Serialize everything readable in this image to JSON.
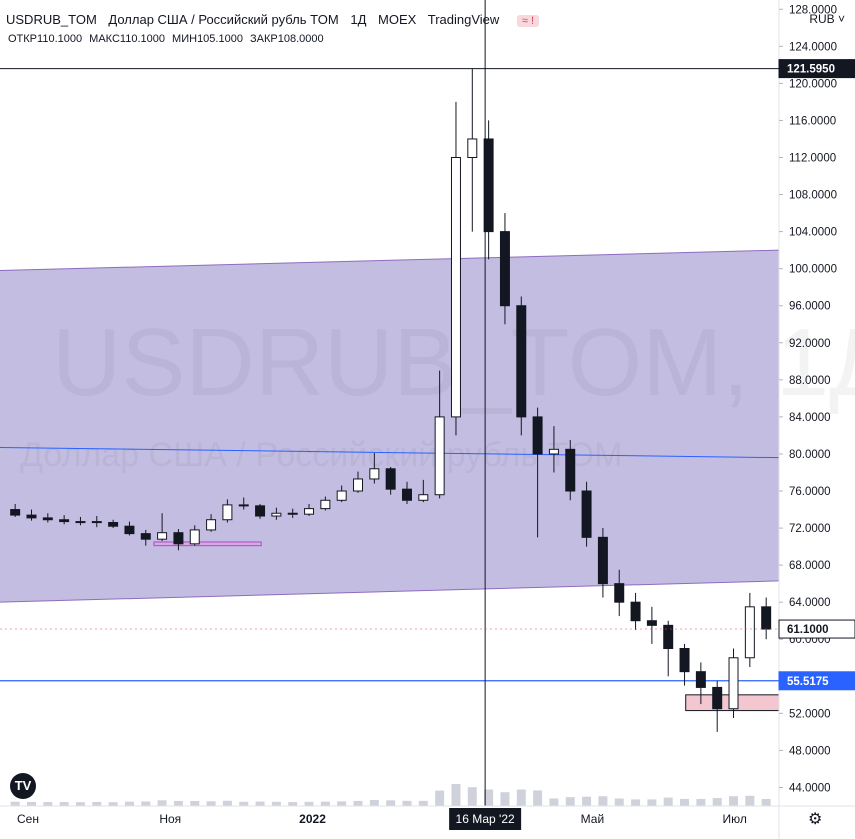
{
  "header": {
    "symbol": "USDRUB_TOM",
    "description": "Доллар США / Российский рубль TOM",
    "interval": "1Д",
    "exchange": "MOEX",
    "source": "TradingView",
    "badge": "≈ !"
  },
  "ohlc": {
    "open_label": "ОТКР",
    "open": "110.1000",
    "high_label": "МАКС",
    "high": "110.1000",
    "low_label": "МИН",
    "low": "105.1000",
    "close_label": "ЗАКР",
    "close": "108.0000"
  },
  "currency_button": "RUB ˅",
  "watermark": {
    "line1": "USDRUB_TOM, 1Д",
    "line2": "Доллар США / Российский рубль TOM"
  },
  "price_labels": {
    "crosshair": "121.5950",
    "last": "61.1000",
    "level": "55.5175"
  },
  "crosshair_date": "16 Мар '22",
  "colors": {
    "channel_fill": "#b9b3dc",
    "channel_line": "#8e6bbf",
    "level_line": "#2962ff",
    "last_price_bg": "#131722",
    "zone_fill": "#f3c6d0"
  },
  "chart_data": {
    "type": "candlestick",
    "y_ticks": [
      "44.0000",
      "48.0000",
      "52.0000",
      "56.0000",
      "60.0000",
      "64.0000",
      "68.0000",
      "72.0000",
      "76.0000",
      "80.0000",
      "84.0000",
      "88.0000",
      "92.0000",
      "96.0000",
      "100.0000",
      "104.0000",
      "108.0000",
      "112.0000",
      "116.0000",
      "120.0000",
      "124.0000",
      "128.0000"
    ],
    "x_ticks": [
      "Сен",
      "Ноя",
      "2022",
      "Май",
      "Июл"
    ],
    "ylim": [
      42,
      129
    ],
    "xlim": [
      "2021-08-20",
      "2022-07-20"
    ],
    "annotations": {
      "channel_upper": {
        "start": [
          "2021-08-20",
          99.8
        ],
        "end": [
          "2022-07-20",
          102.0
        ]
      },
      "channel_lower": {
        "start": [
          "2021-08-20",
          64.0
        ],
        "end": [
          "2022-07-20",
          66.3
        ]
      },
      "midline": {
        "start": [
          "2021-08-20",
          80.7
        ],
        "end": [
          "2022-07-20",
          79.6
        ]
      },
      "horizontal_level": 55.5175,
      "zone_small": {
        "x": [
          "2021-10-25",
          "2021-12-10"
        ],
        "y": [
          70.1,
          70.5
        ]
      },
      "zone_bottom": {
        "x": [
          "2022-06-10",
          "2022-07-20"
        ],
        "y": [
          52.3,
          54.0
        ]
      },
      "crosshair": {
        "date": "2022-03-16",
        "price": 121.595
      },
      "last_price": 61.1
    },
    "series": [
      {
        "dates": [
          "2021-08-23",
          "2021-08-30",
          "2021-09-06",
          "2021-09-13",
          "2021-09-20",
          "2021-09-27",
          "2021-10-04",
          "2021-10-11",
          "2021-10-18",
          "2021-10-25",
          "2021-11-01",
          "2021-11-08",
          "2021-11-15",
          "2021-11-22",
          "2021-11-29",
          "2021-12-06",
          "2021-12-13",
          "2021-12-20",
          "2021-12-27",
          "2022-01-03",
          "2022-01-10",
          "2022-01-17",
          "2022-01-24",
          "2022-01-31",
          "2022-02-07",
          "2022-02-14",
          "2022-02-21",
          "2022-02-28",
          "2022-03-07",
          "2022-03-14",
          "2022-03-21",
          "2022-03-28",
          "2022-04-04",
          "2022-04-11",
          "2022-04-18",
          "2022-04-25",
          "2022-05-02",
          "2022-05-09",
          "2022-05-16",
          "2022-05-23",
          "2022-05-30",
          "2022-06-06",
          "2022-06-13",
          "2022-06-20",
          "2022-06-27",
          "2022-07-04",
          "2022-07-11"
        ],
        "open": [
          74.0,
          73.4,
          73.1,
          72.9,
          72.7,
          72.7,
          72.6,
          72.2,
          71.4,
          70.8,
          71.5,
          70.3,
          71.8,
          72.9,
          74.5,
          74.4,
          73.3,
          73.6,
          73.5,
          74.1,
          75.0,
          76.0,
          77.3,
          78.4,
          76.2,
          75.0,
          75.6,
          84.0,
          112.0,
          114.0,
          104.0,
          96.0,
          84.0,
          80.0,
          80.5,
          76.0,
          71.0,
          66.0,
          64.0,
          62.0,
          61.5,
          59.0,
          56.5,
          54.8,
          52.5,
          58.0,
          63.5
        ],
        "close": [
          73.4,
          73.1,
          72.9,
          72.7,
          72.7,
          72.6,
          72.2,
          71.4,
          70.8,
          71.5,
          70.3,
          71.8,
          72.9,
          74.5,
          74.4,
          73.3,
          73.6,
          73.5,
          74.1,
          75.0,
          76.0,
          77.3,
          78.4,
          76.2,
          75.0,
          75.6,
          84.0,
          112.0,
          114.0,
          104.0,
          96.0,
          84.0,
          80.0,
          80.5,
          76.0,
          71.0,
          66.0,
          64.0,
          62.0,
          61.5,
          59.0,
          56.5,
          54.8,
          52.5,
          58.0,
          63.5,
          61.1
        ],
        "high": [
          74.6,
          74.0,
          73.6,
          73.4,
          73.2,
          73.3,
          72.9,
          72.7,
          71.8,
          73.6,
          71.9,
          72.3,
          73.5,
          75.1,
          75.3,
          74.6,
          74.2,
          74.1,
          74.6,
          75.4,
          76.6,
          78.1,
          80.1,
          78.6,
          77.0,
          77.2,
          89.0,
          118.0,
          121.6,
          116.0,
          106.0,
          97.0,
          85.0,
          83.0,
          81.5,
          77.0,
          72.0,
          67.5,
          65.0,
          63.5,
          62.0,
          59.5,
          57.5,
          55.5,
          59.0,
          65.0,
          64.5
        ],
        "low": [
          73.2,
          72.8,
          72.6,
          72.4,
          72.3,
          72.1,
          72.0,
          71.2,
          70.1,
          70.6,
          69.6,
          70.1,
          71.6,
          72.6,
          74.0,
          73.0,
          72.9,
          73.1,
          73.3,
          73.9,
          74.8,
          75.8,
          76.8,
          75.6,
          74.6,
          74.8,
          75.2,
          82.0,
          104.0,
          101.0,
          94.0,
          82.0,
          71.0,
          78.0,
          75.0,
          70.0,
          64.5,
          62.5,
          61.0,
          59.5,
          56.0,
          55.0,
          53.0,
          50.0,
          51.5,
          57.0,
          60.0
        ]
      }
    ]
  }
}
